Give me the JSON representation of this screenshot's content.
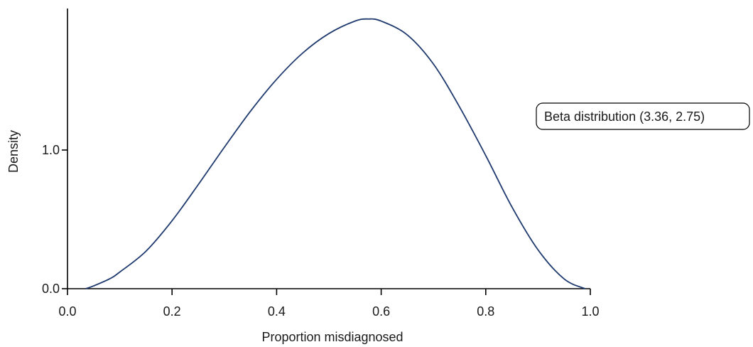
{
  "chart_data": {
    "type": "line",
    "title": "",
    "xlabel": "Proportion misdiagnosed",
    "ylabel": "Density",
    "xlim": [
      0.0,
      1.0
    ],
    "ylim": [
      0.0,
      2.0
    ],
    "x_ticks": [
      0.0,
      0.2,
      0.4,
      0.6,
      0.8,
      1.0
    ],
    "x_tick_labels": [
      "0.0",
      "0.2",
      "0.4",
      "0.6",
      "0.8",
      "1.0"
    ],
    "y_ticks": [
      0.0,
      1.0
    ],
    "y_tick_labels": [
      "0.0",
      "1.0"
    ],
    "grid": false,
    "legend_position": "right",
    "series": [
      {
        "name": "Beta distribution (3.36, 2.75)",
        "color": "#1f3a6e",
        "x": [
          0.035,
          0.05,
          0.08,
          0.1,
          0.15,
          0.2,
          0.25,
          0.3,
          0.35,
          0.4,
          0.45,
          0.5,
          0.55,
          0.575,
          0.6,
          0.65,
          0.7,
          0.75,
          0.8,
          0.85,
          0.9,
          0.95,
          0.99
        ],
        "y": [
          0.0,
          0.02,
          0.07,
          0.12,
          0.27,
          0.49,
          0.75,
          1.02,
          1.28,
          1.51,
          1.7,
          1.84,
          1.93,
          1.945,
          1.93,
          1.83,
          1.62,
          1.31,
          0.96,
          0.59,
          0.28,
          0.07,
          0.0
        ]
      }
    ]
  }
}
